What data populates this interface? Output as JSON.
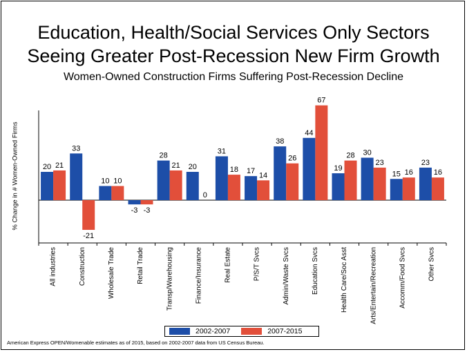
{
  "title_line1": "Education, Health/Social Services Only Sectors",
  "title_line2": "Seeing Greater Post-Recession New Firm Growth",
  "subtitle": "Women-Owned Construction Firms Suffering Post-Recession Decline",
  "footer": "American Express OPEN/Womenable estimates as of 2015, based on 2002-2007 data from US Census Bureau.",
  "colors": {
    "series1": "#1d4ea8",
    "series2": "#e24f3a"
  },
  "chart_data": {
    "type": "bar",
    "ylabel": "% Change  in # Women-Owned Firms",
    "categories": [
      "All industries",
      "Construction",
      "Wholesale Trade",
      "Retail Trade",
      "Transp/Warehousing",
      "Finance/Insurance",
      "Real Estate",
      "P/S/T Svcs",
      "Admin/Waste Svcs",
      "Education Svcs",
      "Health Care/Soc Asst",
      "Arts/Entertain/Recreation",
      "Accomm/Food Svcs",
      "Other Svcs"
    ],
    "series": [
      {
        "name": "2002-2007",
        "values": [
          20,
          33,
          10,
          -3,
          28,
          20,
          31,
          17,
          38,
          44,
          19,
          30,
          15,
          23
        ]
      },
      {
        "name": "2007-2015",
        "values": [
          21,
          -21,
          10,
          -3,
          21,
          0,
          18,
          14,
          26,
          67,
          28,
          23,
          16,
          16
        ]
      }
    ],
    "legend_position": "bottom",
    "grid": false
  }
}
